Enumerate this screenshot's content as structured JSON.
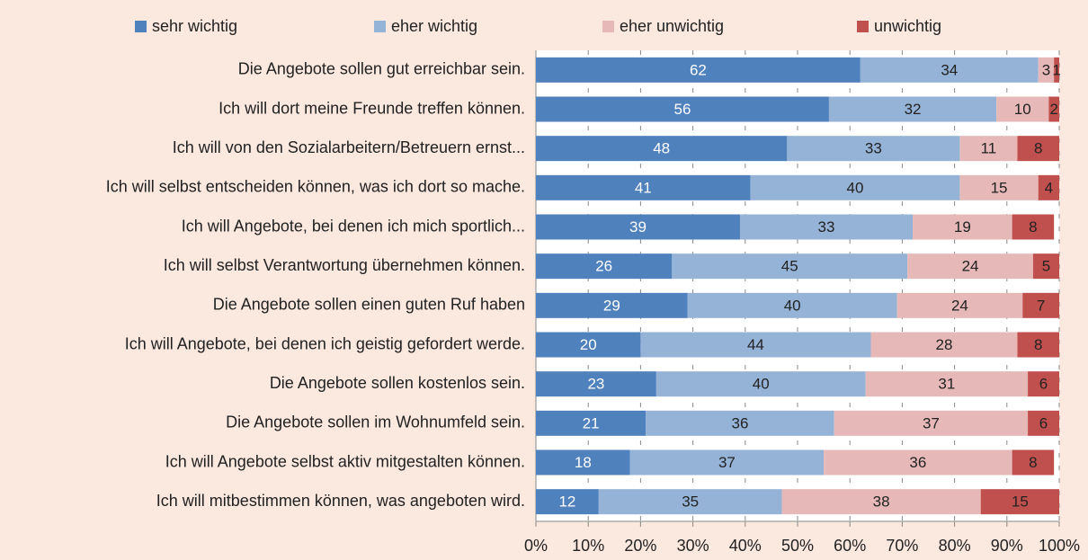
{
  "chart_data": {
    "type": "bar",
    "orientation": "horizontal",
    "stacked": true,
    "categories": [
      "Die Angebote sollen gut erreichbar sein.",
      "Ich will dort meine Freunde treffen können.",
      "Ich will von den Sozialarbeitern/Betreuern ernst...",
      "Ich will selbst entscheiden können, was ich dort so mache.",
      "Ich will Angebote, bei denen ich mich sportlich...",
      "Ich will selbst Verantwortung übernehmen können.",
      "Die Angebote sollen einen guten Ruf haben",
      "Ich will Angebote, bei denen ich geistig gefordert werde.",
      "Die Angebote sollen kostenlos sein.",
      "Die Angebote sollen im Wohnumfeld sein.",
      "Ich will Angebote selbst aktiv mitgestalten können.",
      "Ich will mitbestimmen können, was angeboten wird."
    ],
    "series": [
      {
        "name": "sehr wichtig",
        "color": "#4f81bd",
        "values": [
          62,
          56,
          48,
          41,
          39,
          26,
          29,
          20,
          23,
          21,
          18,
          12
        ]
      },
      {
        "name": "eher wichtig",
        "color": "#95b3d7",
        "values": [
          34,
          32,
          33,
          40,
          33,
          45,
          40,
          44,
          40,
          36,
          37,
          35
        ]
      },
      {
        "name": "eher unwichtig",
        "color": "#e6b9b8",
        "values": [
          3,
          10,
          11,
          15,
          19,
          24,
          24,
          28,
          31,
          37,
          36,
          38
        ]
      },
      {
        "name": "unwichtig",
        "color": "#c0504d",
        "values": [
          1,
          2,
          8,
          4,
          8,
          5,
          7,
          8,
          6,
          6,
          8,
          15
        ]
      }
    ],
    "xlim": [
      0,
      100
    ],
    "xticks": [
      {
        "value": 0,
        "label": "0%"
      },
      {
        "value": 10,
        "label": "10%"
      },
      {
        "value": 20,
        "label": "20%"
      },
      {
        "value": 30,
        "label": "30%"
      },
      {
        "value": 40,
        "label": "40%"
      },
      {
        "value": 50,
        "label": "50%"
      },
      {
        "value": 60,
        "label": "60%"
      },
      {
        "value": 70,
        "label": "70%"
      },
      {
        "value": 80,
        "label": "80%"
      },
      {
        "value": 90,
        "label": "90%"
      },
      {
        "value": 100,
        "label": "100%"
      }
    ],
    "grid": true,
    "legend": "top"
  }
}
